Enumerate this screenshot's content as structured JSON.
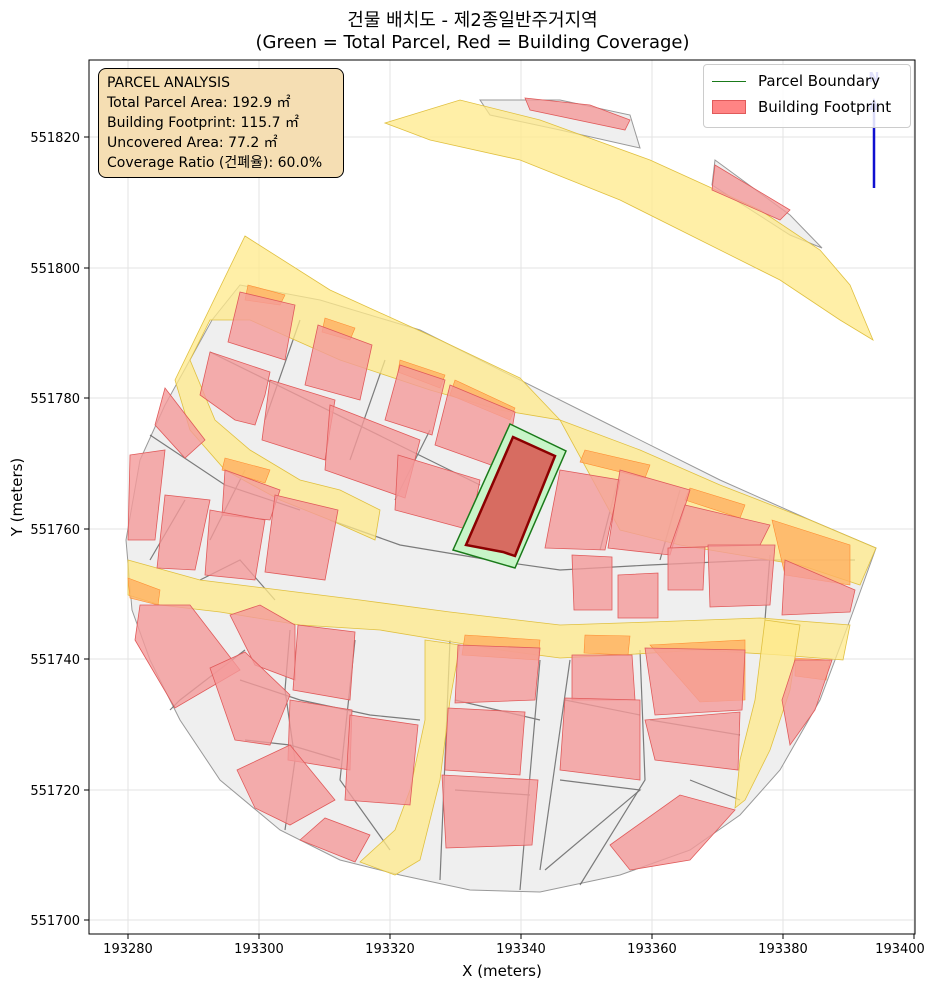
{
  "title_line1": "건물 배치도 - 제2종일반주거지역",
  "title_line2": "(Green = Total Parcel, Red = Building Coverage)",
  "xlabel": "X (meters)",
  "ylabel": "Y (meters)",
  "x_ticks": [
    "193280",
    "193300",
    "193320",
    "193340",
    "193360",
    "193380",
    "193400"
  ],
  "y_ticks": [
    "551700",
    "551720",
    "551740",
    "551760",
    "551780",
    "551800",
    "551820"
  ],
  "info_box": {
    "heading": "PARCEL ANALYSIS",
    "total_area": "Total Parcel Area: 192.9 ㎡",
    "footprint": "Building Footprint: 115.7 ㎡",
    "uncovered": "Uncovered Area: 77.2 ㎡",
    "coverage": "Coverage Ratio (건폐율): 60.0%"
  },
  "legend": {
    "parcel_boundary": "Parcel Boundary",
    "building_footprint": "Building Footprint"
  },
  "north_label": "N",
  "colors": {
    "parcel_fill": "#c8f5c8",
    "parcel_edge": "#1a7a1a",
    "building_fill": "#d9534f",
    "building_edge": "#8b0000",
    "neighbor_building": "#f4a3a3",
    "road": "#ffe98a",
    "lot": "#efefef",
    "info_bg": "#f5deb3",
    "north_arrow": "#1010d0"
  }
}
